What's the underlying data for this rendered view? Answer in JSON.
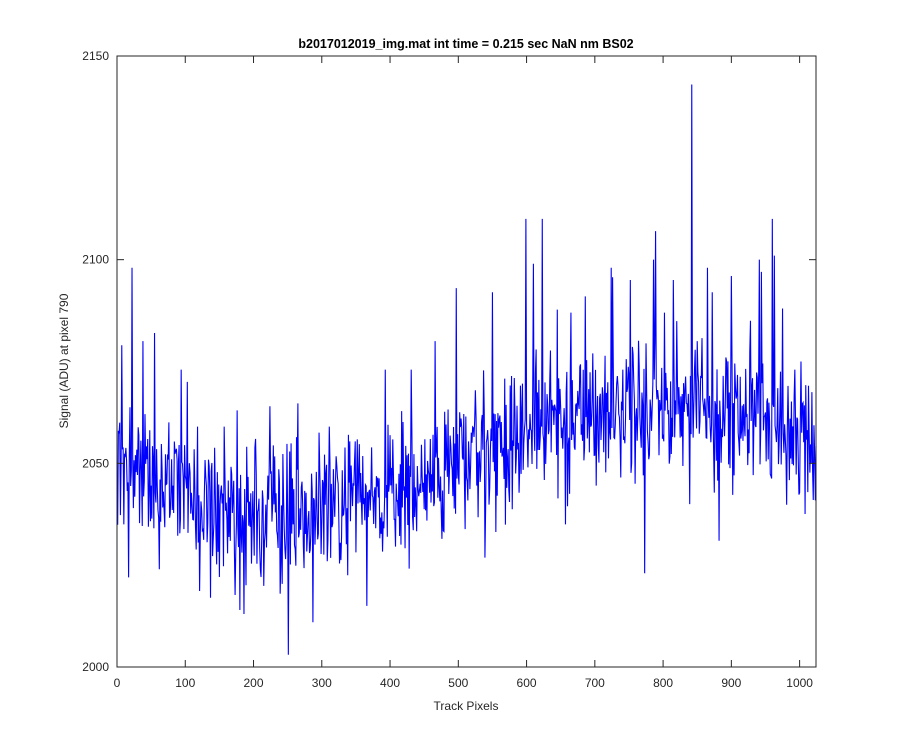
{
  "chart_data": {
    "type": "line",
    "title": "b2017012019_img.mat int time = 0.215 sec  NaN nm BS02",
    "xlabel": "Track Pixels",
    "ylabel": "Signal (ADU) at pixel 790",
    "xlim": [
      0,
      1024
    ],
    "ylim": [
      2000,
      2150
    ],
    "xticks": [
      "0",
      "100",
      "200",
      "300",
      "400",
      "500",
      "600",
      "700",
      "800",
      "900",
      "1000"
    ],
    "yticks": [
      "2000",
      "2050",
      "2100",
      "2150"
    ],
    "grid": false,
    "series": [
      {
        "color": "#0000ff",
        "anchors": [
          [
            0,
            2050
          ],
          [
            20,
            2048
          ],
          [
            50,
            2046
          ],
          [
            100,
            2043
          ],
          [
            150,
            2040
          ],
          [
            200,
            2037
          ],
          [
            250,
            2036
          ],
          [
            300,
            2038
          ],
          [
            350,
            2040
          ],
          [
            400,
            2042
          ],
          [
            450,
            2044
          ],
          [
            500,
            2050
          ],
          [
            550,
            2054
          ],
          [
            600,
            2058
          ],
          [
            650,
            2061
          ],
          [
            700,
            2063
          ],
          [
            750,
            2064
          ],
          [
            800,
            2065
          ],
          [
            850,
            2064
          ],
          [
            900,
            2062
          ],
          [
            950,
            2060
          ],
          [
            1024,
            2056
          ]
        ],
        "noise_amplitude": 8.5,
        "spikes": [
          [
            2,
            2058
          ],
          [
            4,
            2060
          ],
          [
            7,
            2079
          ],
          [
            10,
            2035
          ],
          [
            17,
            2022
          ],
          [
            22,
            2098
          ],
          [
            24,
            2039
          ],
          [
            38,
            2080
          ],
          [
            55,
            2082
          ],
          [
            62,
            2024
          ],
          [
            94,
            2073
          ],
          [
            103,
            2070
          ],
          [
            118,
            2059
          ],
          [
            137,
            2017
          ],
          [
            157,
            2059
          ],
          [
            176,
            2063
          ],
          [
            180,
            2014
          ],
          [
            186,
            2013
          ],
          [
            203,
            2056
          ],
          [
            224,
            2064
          ],
          [
            239,
            2018
          ],
          [
            251,
            2003
          ],
          [
            282,
            2028
          ],
          [
            287,
            2011
          ],
          [
            311,
            2059
          ],
          [
            339,
            2057
          ],
          [
            366,
            2015
          ],
          [
            372,
            2044
          ],
          [
            393,
            2073
          ],
          [
            431,
            2073
          ],
          [
            466,
            2080
          ],
          [
            497,
            2093
          ],
          [
            504,
            2061
          ],
          [
            550,
            2092
          ],
          [
            599,
            2110
          ],
          [
            610,
            2099
          ],
          [
            623,
            2110
          ],
          [
            638,
            2063
          ],
          [
            657,
            2035
          ],
          [
            665,
            2087
          ],
          [
            686,
            2091
          ],
          [
            700,
            2052
          ],
          [
            724,
            2098
          ],
          [
            741,
            2073
          ],
          [
            752,
            2095
          ],
          [
            773,
            2023
          ],
          [
            786,
            2100
          ],
          [
            789,
            2107
          ],
          [
            802,
            2087
          ],
          [
            815,
            2095
          ],
          [
            839,
            2040
          ],
          [
            842,
            2143
          ],
          [
            850,
            2080
          ],
          [
            865,
            2098
          ],
          [
            872,
            2092
          ],
          [
            882,
            2031
          ],
          [
            900,
            2096
          ],
          [
            928,
            2085
          ],
          [
            941,
            2100
          ],
          [
            944,
            2097
          ],
          [
            960,
            2110
          ],
          [
            963,
            2101
          ],
          [
            975,
            2088
          ],
          [
            993,
            2073
          ],
          [
            1002,
            2075
          ],
          [
            1020,
            2041
          ]
        ]
      }
    ]
  }
}
